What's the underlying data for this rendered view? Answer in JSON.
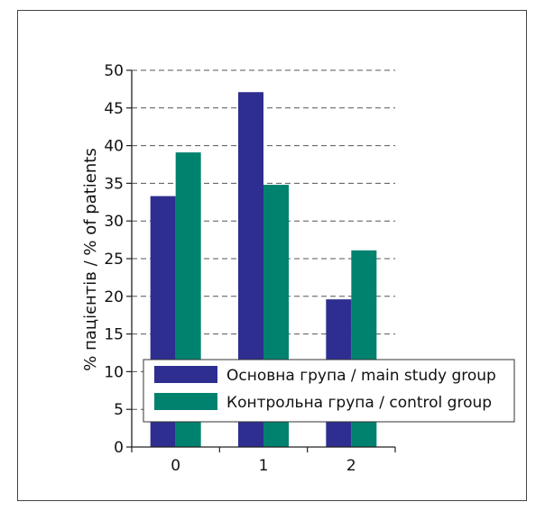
{
  "chart_data": {
    "type": "bar",
    "categories": [
      "0",
      "1",
      "2"
    ],
    "series": [
      {
        "name": "Основна група / main study group",
        "values": [
          33.3,
          47.1,
          19.6
        ],
        "color": "#2e2e91"
      },
      {
        "name": "Контрольна група / control group",
        "values": [
          39.1,
          34.8,
          26.1
        ],
        "color": "#00826f"
      }
    ],
    "ylabel": "% пацієнтів / % of patients",
    "xlabel": "",
    "ylim": [
      0,
      50
    ],
    "yticks": [
      0,
      5,
      10,
      15,
      20,
      25,
      30,
      35,
      40,
      45,
      50
    ],
    "grid": true,
    "legend_position": "bottom-right"
  }
}
